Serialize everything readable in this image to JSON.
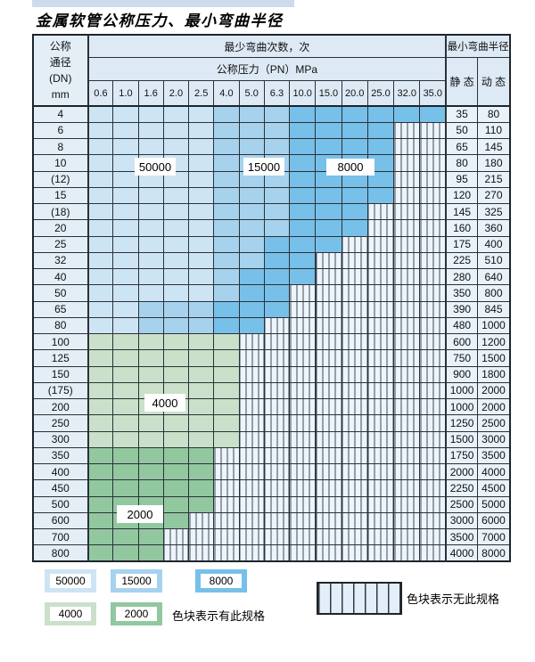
{
  "page": {
    "title": "金属软管公称压力、最小弯曲半径"
  },
  "chart_data": {
    "type": "table",
    "title": "金属软管公称压力、最小弯曲半径",
    "header": {
      "dn_lines": [
        "公称",
        "通径",
        "(DN)",
        "mm"
      ],
      "bend_times": "最少弯曲次数，次",
      "pressure": "公称压力（PN）MPa",
      "min_radius": "最小弯曲半径",
      "static": "静 态",
      "dynamic": "动 态"
    },
    "pressure_columns_MPa": [
      "0.6",
      "1.0",
      "1.6",
      "2.0",
      "2.5",
      "4.0",
      "5.0",
      "6.3",
      "10.0",
      "15.0",
      "20.0",
      "25.0",
      "32.0",
      "35.0"
    ],
    "level_legend": {
      "b1": "50000",
      "b2": "15000",
      "b3": "8000",
      "g1": "4000",
      "g2": "2000",
      "x": "无此规格(斜线区)"
    },
    "rows": [
      {
        "dn": "4",
        "levels": [
          "b1",
          "b1",
          "b1",
          "b1",
          "b1",
          "b2",
          "b2",
          "b2",
          "b3",
          "b3",
          "b3",
          "b3",
          "b3",
          "b3"
        ],
        "static": "35",
        "dynamic": "80"
      },
      {
        "dn": "6",
        "levels": [
          "b1",
          "b1",
          "b1",
          "b1",
          "b1",
          "b2",
          "b2",
          "b2",
          "b3",
          "b3",
          "b3",
          "b3",
          "x",
          "x"
        ],
        "static": "50",
        "dynamic": "110"
      },
      {
        "dn": "8",
        "levels": [
          "b1",
          "b1",
          "b1",
          "b1",
          "b1",
          "b2",
          "b2",
          "b2",
          "b3",
          "b3",
          "b3",
          "b3",
          "x",
          "x"
        ],
        "static": "65",
        "dynamic": "145"
      },
      {
        "dn": "10",
        "levels": [
          "b1",
          "b1",
          "b1",
          "b1",
          "b1",
          "b2",
          "b2",
          "b2",
          "b3",
          "b3",
          "b3",
          "b3",
          "x",
          "x"
        ],
        "static": "80",
        "dynamic": "180"
      },
      {
        "dn": "(12)",
        "levels": [
          "b1",
          "b1",
          "b1",
          "b1",
          "b1",
          "b2",
          "b2",
          "b2",
          "b3",
          "b3",
          "b3",
          "b3",
          "x",
          "x"
        ],
        "static": "95",
        "dynamic": "215"
      },
      {
        "dn": "15",
        "levels": [
          "b1",
          "b1",
          "b1",
          "b1",
          "b1",
          "b2",
          "b2",
          "b2",
          "b3",
          "b3",
          "b3",
          "b3",
          "x",
          "x"
        ],
        "static": "120",
        "dynamic": "270"
      },
      {
        "dn": "(18)",
        "levels": [
          "b1",
          "b1",
          "b1",
          "b1",
          "b1",
          "b2",
          "b2",
          "b2",
          "b3",
          "b3",
          "b3",
          "x",
          "x",
          "x"
        ],
        "static": "145",
        "dynamic": "325"
      },
      {
        "dn": "20",
        "levels": [
          "b1",
          "b1",
          "b1",
          "b1",
          "b1",
          "b2",
          "b2",
          "b2",
          "b3",
          "b3",
          "b3",
          "x",
          "x",
          "x"
        ],
        "static": "160",
        "dynamic": "360"
      },
      {
        "dn": "25",
        "levels": [
          "b1",
          "b1",
          "b1",
          "b1",
          "b1",
          "b2",
          "b2",
          "b3",
          "b3",
          "b3",
          "x",
          "x",
          "x",
          "x"
        ],
        "static": "175",
        "dynamic": "400"
      },
      {
        "dn": "32",
        "levels": [
          "b1",
          "b1",
          "b1",
          "b1",
          "b1",
          "b2",
          "b2",
          "b3",
          "b3",
          "x",
          "x",
          "x",
          "x",
          "x"
        ],
        "static": "225",
        "dynamic": "510"
      },
      {
        "dn": "40",
        "levels": [
          "b1",
          "b1",
          "b1",
          "b1",
          "b1",
          "b2",
          "b3",
          "b3",
          "b3",
          "x",
          "x",
          "x",
          "x",
          "x"
        ],
        "static": "280",
        "dynamic": "640"
      },
      {
        "dn": "50",
        "levels": [
          "b1",
          "b1",
          "b1",
          "b1",
          "b1",
          "b2",
          "b3",
          "b3",
          "x",
          "x",
          "x",
          "x",
          "x",
          "x"
        ],
        "static": "350",
        "dynamic": "800"
      },
      {
        "dn": "65",
        "levels": [
          "b1",
          "b1",
          "b2",
          "b2",
          "b2",
          "b3",
          "b3",
          "b3",
          "x",
          "x",
          "x",
          "x",
          "x",
          "x"
        ],
        "static": "390",
        "dynamic": "845"
      },
      {
        "dn": "80",
        "levels": [
          "b1",
          "b1",
          "b2",
          "b2",
          "b2",
          "b3",
          "b3",
          "x",
          "x",
          "x",
          "x",
          "x",
          "x",
          "x"
        ],
        "static": "480",
        "dynamic": "1000"
      },
      {
        "dn": "100",
        "levels": [
          "g1",
          "g1",
          "g1",
          "g1",
          "g1",
          "g1",
          "x",
          "x",
          "x",
          "x",
          "x",
          "x",
          "x",
          "x"
        ],
        "static": "600",
        "dynamic": "1200"
      },
      {
        "dn": "125",
        "levels": [
          "g1",
          "g1",
          "g1",
          "g1",
          "g1",
          "g1",
          "x",
          "x",
          "x",
          "x",
          "x",
          "x",
          "x",
          "x"
        ],
        "static": "750",
        "dynamic": "1500"
      },
      {
        "dn": "150",
        "levels": [
          "g1",
          "g1",
          "g1",
          "g1",
          "g1",
          "g1",
          "x",
          "x",
          "x",
          "x",
          "x",
          "x",
          "x",
          "x"
        ],
        "static": "900",
        "dynamic": "1800"
      },
      {
        "dn": "(175)",
        "levels": [
          "g1",
          "g1",
          "g1",
          "g1",
          "g1",
          "g1",
          "x",
          "x",
          "x",
          "x",
          "x",
          "x",
          "x",
          "x"
        ],
        "static": "1000",
        "dynamic": "2000"
      },
      {
        "dn": "200",
        "levels": [
          "g1",
          "g1",
          "g1",
          "g1",
          "g1",
          "g1",
          "x",
          "x",
          "x",
          "x",
          "x",
          "x",
          "x",
          "x"
        ],
        "static": "1000",
        "dynamic": "2000"
      },
      {
        "dn": "250",
        "levels": [
          "g1",
          "g1",
          "g1",
          "g1",
          "g1",
          "g1",
          "x",
          "x",
          "x",
          "x",
          "x",
          "x",
          "x",
          "x"
        ],
        "static": "1250",
        "dynamic": "2500"
      },
      {
        "dn": "300",
        "levels": [
          "g1",
          "g1",
          "g1",
          "g1",
          "g1",
          "g1",
          "x",
          "x",
          "x",
          "x",
          "x",
          "x",
          "x",
          "x"
        ],
        "static": "1500",
        "dynamic": "3000"
      },
      {
        "dn": "350",
        "levels": [
          "g2",
          "g2",
          "g2",
          "g2",
          "g2",
          "x",
          "x",
          "x",
          "x",
          "x",
          "x",
          "x",
          "x",
          "x"
        ],
        "static": "1750",
        "dynamic": "3500"
      },
      {
        "dn": "400",
        "levels": [
          "g2",
          "g2",
          "g2",
          "g2",
          "g2",
          "x",
          "x",
          "x",
          "x",
          "x",
          "x",
          "x",
          "x",
          "x"
        ],
        "static": "2000",
        "dynamic": "4000"
      },
      {
        "dn": "450",
        "levels": [
          "g2",
          "g2",
          "g2",
          "g2",
          "g2",
          "x",
          "x",
          "x",
          "x",
          "x",
          "x",
          "x",
          "x",
          "x"
        ],
        "static": "2250",
        "dynamic": "4500"
      },
      {
        "dn": "500",
        "levels": [
          "g2",
          "g2",
          "g2",
          "g2",
          "g2",
          "x",
          "x",
          "x",
          "x",
          "x",
          "x",
          "x",
          "x",
          "x"
        ],
        "static": "2500",
        "dynamic": "5000"
      },
      {
        "dn": "600",
        "levels": [
          "g2",
          "g2",
          "g2",
          "g2",
          "x",
          "x",
          "x",
          "x",
          "x",
          "x",
          "x",
          "x",
          "x",
          "x"
        ],
        "static": "3000",
        "dynamic": "6000"
      },
      {
        "dn": "700",
        "levels": [
          "g2",
          "g2",
          "g2",
          "x",
          "x",
          "x",
          "x",
          "x",
          "x",
          "x",
          "x",
          "x",
          "x",
          "x"
        ],
        "static": "3500",
        "dynamic": "7000"
      },
      {
        "dn": "800",
        "levels": [
          "g2",
          "g2",
          "g2",
          "x",
          "x",
          "x",
          "x",
          "x",
          "x",
          "x",
          "x",
          "x",
          "x",
          "x"
        ],
        "static": "4000",
        "dynamic": "8000"
      }
    ]
  },
  "overlay_labels": [
    {
      "id": "ovl-50000",
      "text": "50000"
    },
    {
      "id": "ovl-15000",
      "text": "15000"
    },
    {
      "id": "ovl-8000",
      "text": "8000"
    },
    {
      "id": "ovl-4000",
      "text": "4000"
    },
    {
      "id": "ovl-2000",
      "text": "2000"
    }
  ],
  "legend": {
    "items": [
      {
        "label": "50000",
        "level": "b1"
      },
      {
        "label": "15000",
        "level": "b2"
      },
      {
        "label": "8000",
        "level": "b3"
      },
      {
        "label": "4000",
        "level": "g1"
      },
      {
        "label": "2000",
        "level": "g2"
      }
    ],
    "has_spec_text": "色块表示有此规格",
    "no_spec_text": "色块表示无此规格"
  },
  "colors": {
    "b1": "#cde4f4",
    "b2": "#a6d2ee",
    "b3": "#77c0e9",
    "g1": "#cbe0ca",
    "g2": "#92c89f",
    "hatch_bg": "#edf4fb",
    "header_bg": "#dde9f4",
    "dn_bg": "#e4eef7",
    "value_bg": "#e9f1f9",
    "top_strip": "#ccdcec",
    "border": "#2b3138"
  }
}
